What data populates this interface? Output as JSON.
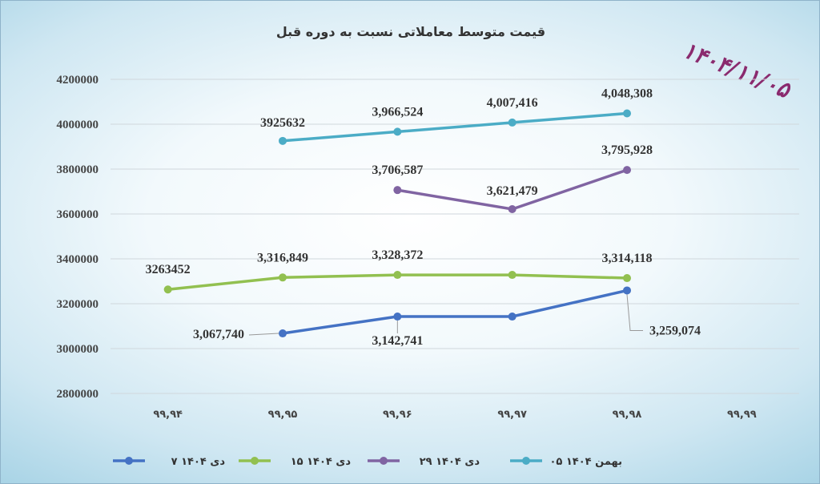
{
  "stamp_date": "۱۴۰۴/۱۱/۰۵",
  "chart_data": {
    "type": "line",
    "title": "قیمت متوسط معاملاتی نسبت به دوره قبل",
    "categories": [
      "۹۹,۹۴",
      "۹۹,۹۵",
      "۹۹,۹۶",
      "۹۹,۹۷",
      "۹۹,۹۸",
      "۹۹,۹۹"
    ],
    "ylim": [
      2800000,
      4200000
    ],
    "yticks": [
      "4200000",
      "4000000",
      "3800000",
      "3600000",
      "3400000",
      "3200000",
      "3000000",
      "2800000"
    ],
    "grid": true,
    "legend_position": "bottom",
    "series": [
      {
        "name": "۷ دی ۱۴۰۴",
        "color": "#4472c4",
        "values": [
          null,
          3067740,
          3142741,
          3142741,
          3259074,
          null
        ],
        "labels": [
          null,
          "3,067,740",
          "3,142,741",
          null,
          "3,259,074",
          null
        ]
      },
      {
        "name": "۱۵ دی ۱۴۰۴",
        "color": "#92c050",
        "values": [
          3263452,
          3316849,
          3328372,
          3328372,
          3314118,
          null
        ],
        "labels": [
          "3263452",
          "3,316,849",
          "3,328,372",
          null,
          "3,314,118",
          null
        ]
      },
      {
        "name": "۲۹ دی ۱۴۰۴",
        "color": "#8064a2",
        "values": [
          null,
          null,
          3706587,
          3621479,
          3795928,
          null
        ],
        "labels": [
          null,
          null,
          "3,706,587",
          "3,621,479",
          "3,795,928",
          null
        ]
      },
      {
        "name": "۰۵ بهمن ۱۴۰۴",
        "color": "#4bacc6",
        "values": [
          null,
          3925632,
          3966524,
          4007416,
          4048308,
          null
        ],
        "labels": [
          null,
          "3925632",
          "3,966,524",
          "4,007,416",
          "4,048,308",
          null
        ]
      }
    ]
  }
}
